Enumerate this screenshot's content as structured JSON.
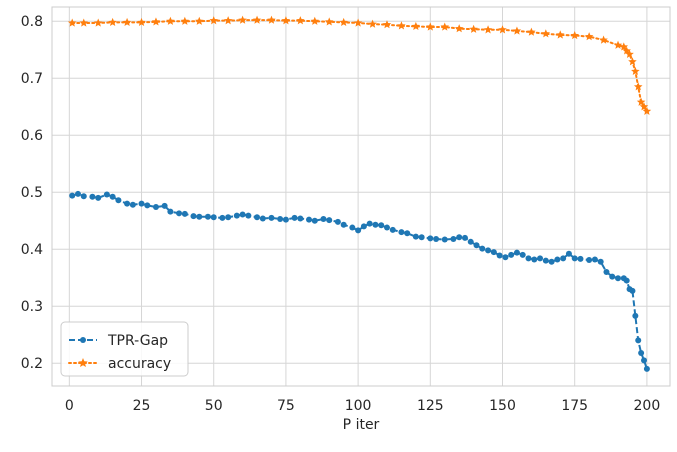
{
  "chart_data": {
    "type": "line",
    "title": "",
    "xlabel": "P iter",
    "ylabel": "",
    "xlim": [
      -6,
      208
    ],
    "ylim": [
      0.16,
      0.825
    ],
    "xticks": [
      0,
      25,
      50,
      75,
      100,
      125,
      150,
      175,
      200
    ],
    "yticks": [
      0.2,
      0.3,
      0.4,
      0.5,
      0.6,
      0.7,
      0.8
    ],
    "grid": true,
    "legend_position": "bottom-left",
    "colors": {
      "tpr_gap": "#1f77b4",
      "accuracy": "#ff7f0e",
      "grid": "#d6d6d6",
      "spine": "#cccccc"
    },
    "series": [
      {
        "name": "TPR-Gap",
        "marker": "circle",
        "linestyle": "dashed",
        "points": [
          [
            1,
            0.494
          ],
          [
            3,
            0.497
          ],
          [
            5,
            0.493
          ],
          [
            8,
            0.492
          ],
          [
            10,
            0.49
          ],
          [
            13,
            0.496
          ],
          [
            15,
            0.492
          ],
          [
            17,
            0.486
          ],
          [
            20,
            0.48
          ],
          [
            22,
            0.478
          ],
          [
            25,
            0.48
          ],
          [
            27,
            0.477
          ],
          [
            30,
            0.474
          ],
          [
            33,
            0.476
          ],
          [
            35,
            0.466
          ],
          [
            38,
            0.463
          ],
          [
            40,
            0.462
          ],
          [
            43,
            0.458
          ],
          [
            45,
            0.457
          ],
          [
            48,
            0.457
          ],
          [
            50,
            0.456
          ],
          [
            53,
            0.455
          ],
          [
            55,
            0.456
          ],
          [
            58,
            0.459
          ],
          [
            60,
            0.461
          ],
          [
            62,
            0.459
          ],
          [
            65,
            0.456
          ],
          [
            67,
            0.454
          ],
          [
            70,
            0.455
          ],
          [
            73,
            0.453
          ],
          [
            75,
            0.452
          ],
          [
            78,
            0.455
          ],
          [
            80,
            0.454
          ],
          [
            83,
            0.452
          ],
          [
            85,
            0.45
          ],
          [
            88,
            0.453
          ],
          [
            90,
            0.451
          ],
          [
            93,
            0.448
          ],
          [
            95,
            0.443
          ],
          [
            98,
            0.438
          ],
          [
            100,
            0.433
          ],
          [
            102,
            0.44
          ],
          [
            104,
            0.445
          ],
          [
            106,
            0.443
          ],
          [
            108,
            0.442
          ],
          [
            110,
            0.438
          ],
          [
            112,
            0.434
          ],
          [
            115,
            0.43
          ],
          [
            117,
            0.428
          ],
          [
            120,
            0.422
          ],
          [
            122,
            0.421
          ],
          [
            125,
            0.419
          ],
          [
            127,
            0.418
          ],
          [
            130,
            0.417
          ],
          [
            133,
            0.418
          ],
          [
            135,
            0.421
          ],
          [
            137,
            0.42
          ],
          [
            139,
            0.413
          ],
          [
            141,
            0.407
          ],
          [
            143,
            0.401
          ],
          [
            145,
            0.398
          ],
          [
            147,
            0.395
          ],
          [
            149,
            0.389
          ],
          [
            151,
            0.386
          ],
          [
            153,
            0.39
          ],
          [
            155,
            0.394
          ],
          [
            157,
            0.39
          ],
          [
            159,
            0.384
          ],
          [
            161,
            0.382
          ],
          [
            163,
            0.384
          ],
          [
            165,
            0.38
          ],
          [
            167,
            0.378
          ],
          [
            169,
            0.382
          ],
          [
            171,
            0.384
          ],
          [
            173,
            0.392
          ],
          [
            175,
            0.384
          ],
          [
            177,
            0.383
          ],
          [
            180,
            0.381
          ],
          [
            182,
            0.382
          ],
          [
            184,
            0.378
          ],
          [
            186,
            0.36
          ],
          [
            188,
            0.352
          ],
          [
            190,
            0.349
          ],
          [
            192,
            0.349
          ],
          [
            193,
            0.345
          ],
          [
            194,
            0.33
          ],
          [
            195,
            0.327
          ],
          [
            196,
            0.283
          ],
          [
            197,
            0.24
          ],
          [
            198,
            0.218
          ],
          [
            199,
            0.205
          ],
          [
            200,
            0.19
          ]
        ]
      },
      {
        "name": "accuracy",
        "marker": "star",
        "linestyle": "dotted",
        "points": [
          [
            1,
            0.797
          ],
          [
            5,
            0.797
          ],
          [
            10,
            0.797
          ],
          [
            15,
            0.798
          ],
          [
            20,
            0.798
          ],
          [
            25,
            0.798
          ],
          [
            30,
            0.799
          ],
          [
            35,
            0.8
          ],
          [
            40,
            0.8
          ],
          [
            45,
            0.8
          ],
          [
            50,
            0.801
          ],
          [
            55,
            0.801
          ],
          [
            60,
            0.802
          ],
          [
            65,
            0.802
          ],
          [
            70,
            0.802
          ],
          [
            75,
            0.801
          ],
          [
            80,
            0.801
          ],
          [
            85,
            0.8
          ],
          [
            90,
            0.799
          ],
          [
            95,
            0.798
          ],
          [
            100,
            0.797
          ],
          [
            105,
            0.795
          ],
          [
            110,
            0.794
          ],
          [
            115,
            0.792
          ],
          [
            120,
            0.791
          ],
          [
            125,
            0.79
          ],
          [
            130,
            0.79
          ],
          [
            135,
            0.787
          ],
          [
            140,
            0.786
          ],
          [
            145,
            0.785
          ],
          [
            150,
            0.785
          ],
          [
            155,
            0.783
          ],
          [
            160,
            0.781
          ],
          [
            165,
            0.778
          ],
          [
            170,
            0.776
          ],
          [
            175,
            0.775
          ],
          [
            180,
            0.773
          ],
          [
            185,
            0.767
          ],
          [
            190,
            0.758
          ],
          [
            192,
            0.755
          ],
          [
            193,
            0.748
          ],
          [
            194,
            0.742
          ],
          [
            195,
            0.729
          ],
          [
            196,
            0.712
          ],
          [
            197,
            0.685
          ],
          [
            198,
            0.658
          ],
          [
            199,
            0.65
          ],
          [
            200,
            0.642
          ]
        ]
      }
    ]
  }
}
